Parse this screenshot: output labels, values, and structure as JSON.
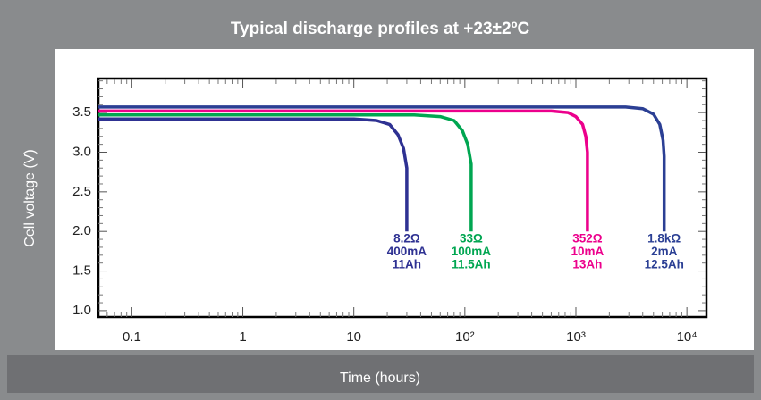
{
  "chart_data": {
    "type": "line",
    "title": "Typical discharge profiles at +23±2ºC",
    "x_label": "Time (hours)",
    "y_label": "Cell voltage (V)",
    "xscale": "log",
    "xlim": [
      0.05,
      15000
    ],
    "ylim": [
      0.92,
      3.93
    ],
    "xticks": [
      0.1,
      1,
      10,
      {
        "value": 100,
        "label": "10²"
      },
      {
        "value": 1000,
        "label": "10³"
      },
      {
        "value": 10000,
        "label": "10⁴"
      }
    ],
    "xminorticks": [
      0.06,
      0.07,
      0.08,
      0.09,
      0.2,
      0.3,
      0.4,
      0.5,
      0.6,
      0.7,
      0.8,
      0.9,
      2,
      3,
      4,
      5,
      6,
      7,
      8,
      9,
      20,
      30,
      40,
      50,
      60,
      70,
      80,
      90,
      200,
      300,
      400,
      500,
      600,
      700,
      800,
      900,
      2000,
      3000,
      4000,
      5000,
      6000,
      7000,
      8000,
      9000
    ],
    "yticks": [
      {
        "value": 1,
        "label": "1.0"
      },
      1.5,
      {
        "value": 2,
        "label": "2.0"
      },
      2.5,
      {
        "value": 3,
        "label": "3.0"
      },
      3.5
    ],
    "yminorticks": [
      1.1,
      1.2,
      1.3,
      1.4,
      1.6,
      1.7,
      1.8,
      1.9,
      2.1,
      2.2,
      2.3,
      2.4,
      2.6,
      2.7,
      2.8,
      2.9,
      3.1,
      3.2,
      3.3,
      3.4,
      3.6,
      3.7,
      3.8,
      3.9
    ],
    "series": [
      {
        "labels": [
          "8.2Ω",
          "400mA",
          "11Ah"
        ],
        "color": "#2e3192",
        "x": [
          0.05,
          10,
          16,
          21,
          25,
          28,
          30,
          30
        ],
        "values": [
          3.42,
          3.42,
          3.4,
          3.35,
          3.22,
          3.05,
          2.8,
          2.0
        ]
      },
      {
        "labels": [
          "33Ω",
          "100mA",
          "11.5Ah"
        ],
        "color": "#00a651",
        "x": [
          0.05,
          35,
          60,
          80,
          95,
          106,
          114,
          114
        ],
        "values": [
          3.47,
          3.47,
          3.45,
          3.4,
          3.27,
          3.1,
          2.85,
          2.0
        ]
      },
      {
        "labels": [
          "352Ω",
          "10mA",
          "13Ah"
        ],
        "color": "#ec008c",
        "x": [
          0.05,
          600,
          850,
          1000,
          1150,
          1230,
          1270,
          1270
        ],
        "values": [
          3.52,
          3.52,
          3.5,
          3.45,
          3.35,
          3.2,
          3.0,
          2.0
        ]
      },
      {
        "labels": [
          "1.8kΩ",
          "2mA",
          "12.5Ah"
        ],
        "color": "#2b3f94",
        "x": [
          0.05,
          2800,
          4000,
          5000,
          5700,
          6100,
          6240,
          6240
        ],
        "values": [
          3.57,
          3.57,
          3.55,
          3.48,
          3.35,
          3.15,
          2.95,
          2.0
        ]
      }
    ]
  }
}
